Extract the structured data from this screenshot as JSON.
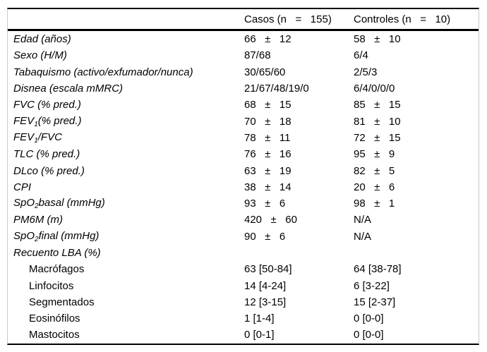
{
  "header": {
    "label_col": "",
    "casos": "Casos (n   =   155)",
    "controles": "Controles (n   =   10)"
  },
  "rows": [
    {
      "label": [
        {
          "text": "Edad (años)"
        }
      ],
      "italic": true,
      "indent": false,
      "casos": "66   ±   12",
      "controles": "58   ±   10"
    },
    {
      "label": [
        {
          "text": "Sexo (H/M)"
        }
      ],
      "italic": true,
      "indent": false,
      "casos": "87/68",
      "controles": "6/4"
    },
    {
      "label": [
        {
          "text": "Tabaquismo (activo/exfumador/nunca)"
        }
      ],
      "italic": true,
      "indent": false,
      "casos": "30/65/60",
      "controles": "2/5/3"
    },
    {
      "label": [
        {
          "text": "Disnea (escala mMRC)"
        }
      ],
      "italic": true,
      "indent": false,
      "casos": "21/67/48/19/0",
      "controles": "6/4/0/0/0"
    },
    {
      "label": [
        {
          "text": "FVC (% pred.)"
        }
      ],
      "italic": true,
      "indent": false,
      "casos": "68   ±   15",
      "controles": "85   ±   15"
    },
    {
      "label": [
        {
          "text": "FEV"
        },
        {
          "text": "1",
          "sub": true
        },
        {
          "text": "(% pred.)"
        }
      ],
      "italic": true,
      "indent": false,
      "casos": "70   ±   18",
      "controles": "81   ±   10"
    },
    {
      "label": [
        {
          "text": "FEV"
        },
        {
          "text": "1",
          "sub": true
        },
        {
          "text": "/FVC"
        }
      ],
      "italic": true,
      "indent": false,
      "casos": "78   ±   11",
      "controles": "72   ±   15"
    },
    {
      "label": [
        {
          "text": "TLC (% pred.)"
        }
      ],
      "italic": true,
      "indent": false,
      "casos": "76   ±   16",
      "controles": "95   ±   9"
    },
    {
      "label": [
        {
          "text": "DLco (% pred.)"
        }
      ],
      "italic": true,
      "indent": false,
      "casos": "63   ±   19",
      "controles": "82   ±   5"
    },
    {
      "label": [
        {
          "text": "CPI"
        }
      ],
      "italic": true,
      "indent": false,
      "casos": "38   ±   14",
      "controles": "20   ±   6"
    },
    {
      "label": [
        {
          "text": "SpO"
        },
        {
          "text": "2",
          "sub": true
        },
        {
          "text": "basal (mmHg)"
        }
      ],
      "italic": true,
      "indent": false,
      "casos": "93   ±   6",
      "controles": "98   ±   1"
    },
    {
      "label": [
        {
          "text": "PM6M (m)"
        }
      ],
      "italic": true,
      "indent": false,
      "casos": "420   ±   60",
      "controles": "N/A"
    },
    {
      "label": [
        {
          "text": "SpO"
        },
        {
          "text": "2",
          "sub": true
        },
        {
          "text": "final (mmHg)"
        }
      ],
      "italic": true,
      "indent": false,
      "casos": "90   ±   6",
      "controles": "N/A"
    },
    {
      "label": [
        {
          "text": "Recuento LBA (%)"
        }
      ],
      "italic": true,
      "indent": false,
      "casos": "",
      "controles": ""
    },
    {
      "label": [
        {
          "text": "Macrófagos"
        }
      ],
      "italic": false,
      "indent": true,
      "casos": "63 [50-84]",
      "controles": "64 [38-78]"
    },
    {
      "label": [
        {
          "text": "Linfocitos"
        }
      ],
      "italic": false,
      "indent": true,
      "casos": "14 [4-24]",
      "controles": "6 [3-22]"
    },
    {
      "label": [
        {
          "text": "Segmentados"
        }
      ],
      "italic": false,
      "indent": true,
      "casos": "12 [3-15]",
      "controles": "15 [2-37]"
    },
    {
      "label": [
        {
          "text": "Eosinófilos"
        }
      ],
      "italic": false,
      "indent": true,
      "casos": "1 [1-4]",
      "controles": "0 [0-0]"
    },
    {
      "label": [
        {
          "text": "Mastocitos"
        }
      ],
      "italic": false,
      "indent": true,
      "casos": "0 [0-1]",
      "controles": "0 [0-0]"
    }
  ]
}
